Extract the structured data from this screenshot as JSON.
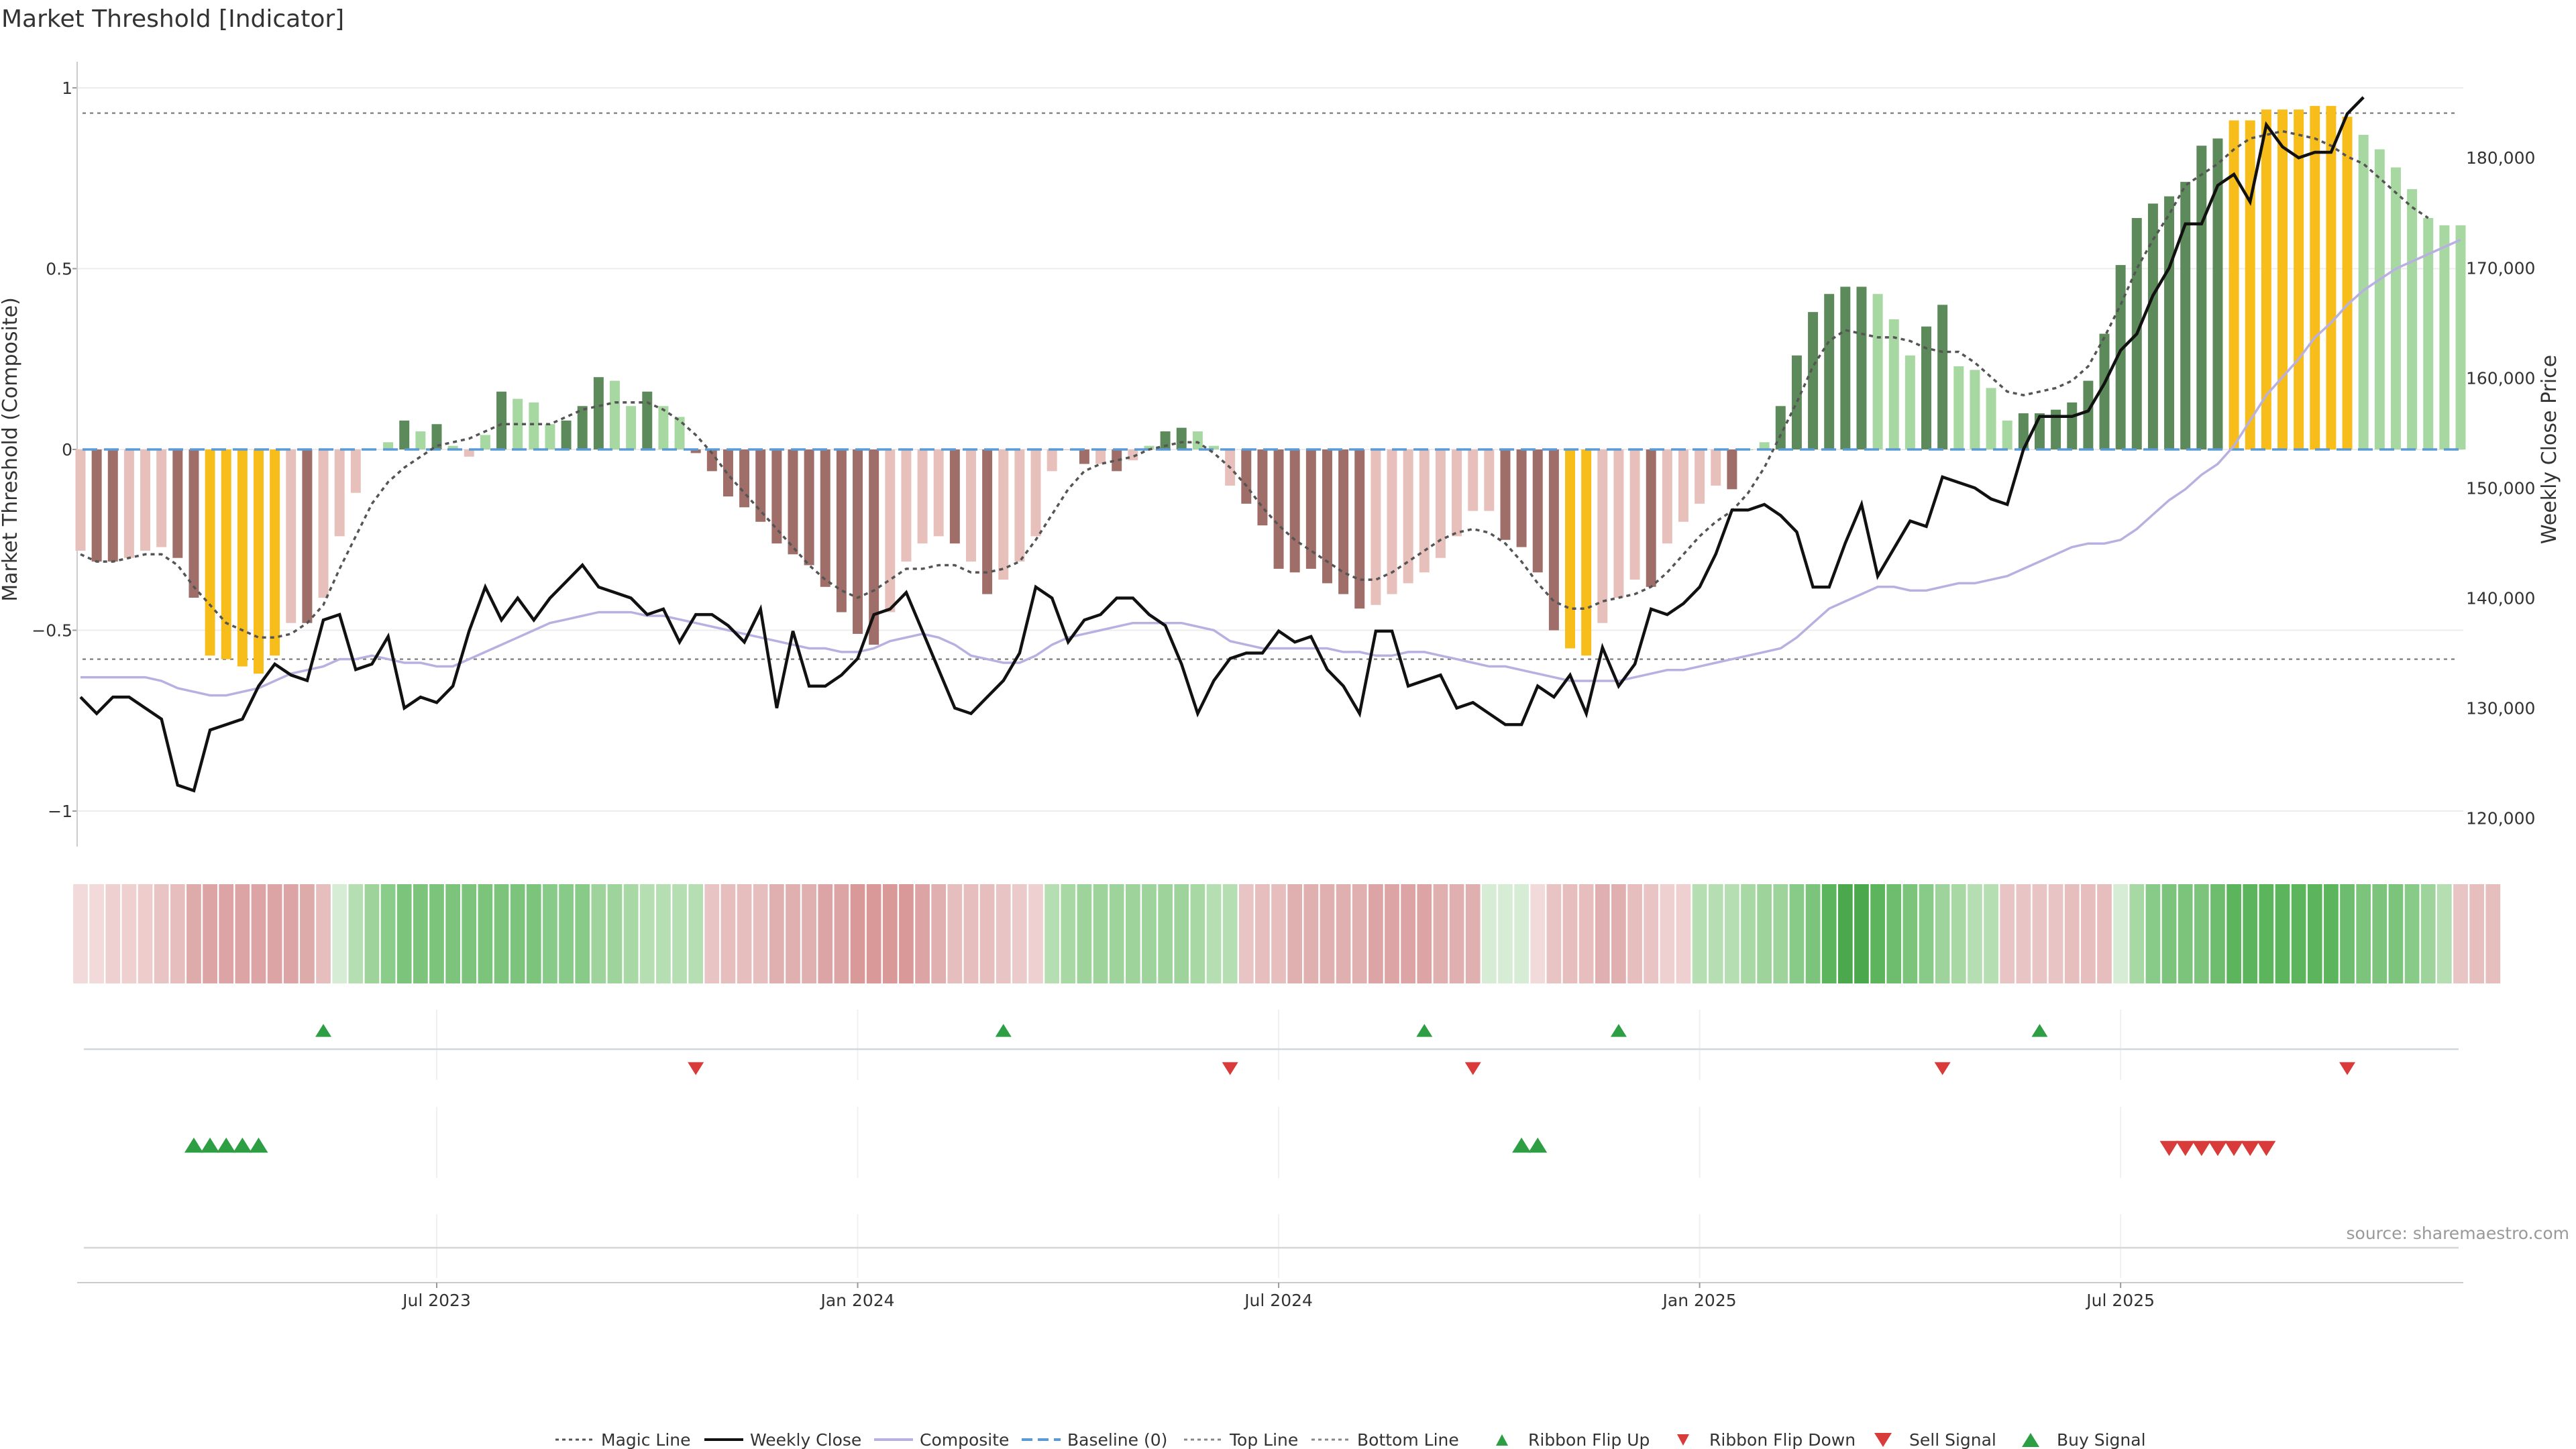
{
  "chart_data": {
    "type": "bar",
    "title": "Market Threshold [Indicator]",
    "ylabel_left": "Market Threshold (Composite)",
    "ylabel_right": "Weekly Close Price",
    "ylim_left": [
      -1.05,
      1.05
    ],
    "ylim_right": [
      119000,
      188000
    ],
    "left_ticks": [
      "1",
      "0.5",
      "0",
      "−0.5",
      "−1"
    ],
    "left_tick_values": [
      1,
      0.5,
      0,
      -0.5,
      -1
    ],
    "right_ticks": [
      "180,000",
      "170,000",
      "160,000",
      "150,000",
      "140,000",
      "130,000",
      "120,000"
    ],
    "right_tick_values": [
      180000,
      170000,
      160000,
      150000,
      140000,
      130000,
      120000
    ],
    "x_ticks": [
      "Jul 2023",
      "Jan 2024",
      "Jul 2024",
      "Jan 2025",
      "Jul 2025"
    ],
    "x_tick_weeks": [
      22,
      48,
      74,
      100,
      126
    ],
    "top_line": 0.93,
    "bottom_line": -0.58,
    "bar_values": [
      -0.28,
      -0.31,
      -0.31,
      -0.3,
      -0.28,
      -0.27,
      -0.3,
      -0.41,
      -0.57,
      -0.58,
      -0.6,
      -0.62,
      -0.57,
      -0.48,
      -0.48,
      -0.41,
      -0.24,
      -0.12,
      0,
      0.02,
      0.08,
      0.05,
      0.07,
      0.01,
      -0.02,
      0.04,
      0.16,
      0.14,
      0.13,
      0.07,
      0.08,
      0.12,
      0.2,
      0.19,
      0.12,
      0.16,
      0.12,
      0.09,
      -0.01,
      -0.06,
      -0.13,
      -0.16,
      -0.2,
      -0.26,
      -0.29,
      -0.32,
      -0.38,
      -0.45,
      -0.51,
      -0.54,
      -0.45,
      -0.31,
      -0.26,
      -0.24,
      -0.26,
      -0.31,
      -0.4,
      -0.36,
      -0.31,
      -0.24,
      -0.06,
      0,
      -0.04,
      -0.04,
      -0.06,
      -0.03,
      0.01,
      0.05,
      0.06,
      0.05,
      0.01,
      -0.1,
      -0.15,
      -0.21,
      -0.33,
      -0.34,
      -0.33,
      -0.37,
      -0.4,
      -0.44,
      -0.43,
      -0.4,
      -0.37,
      -0.34,
      -0.3,
      -0.24,
      -0.17,
      -0.17,
      -0.25,
      -0.27,
      -0.34,
      -0.5,
      -0.55,
      -0.57,
      -0.48,
      -0.41,
      -0.36,
      -0.38,
      -0.26,
      -0.2,
      -0.15,
      -0.1,
      -0.11,
      0,
      0.02,
      0.12,
      0.26,
      0.38,
      0.43,
      0.45,
      0.45,
      0.43,
      0.36,
      0.26,
      0.34,
      0.4,
      0.23,
      0.22,
      0.17,
      0.08,
      0.1,
      0.1,
      0.11,
      0.13,
      0.19,
      0.32,
      0.51,
      0.64,
      0.68,
      0.7,
      0.74,
      0.84,
      0.86,
      0.91,
      0.91,
      0.94,
      0.94,
      0.94,
      0.95,
      0.95,
      0.92,
      0.87,
      0.83,
      0.78,
      0.72,
      0.64,
      0.62,
      0.62
    ],
    "bar_colors": [
      "#e8c0bb",
      "#a06e68",
      "#a06e68",
      "#e8c0bb",
      "#e8c0bb",
      "#e8c0bb",
      "#a06e68",
      "#a06e68",
      "#f7bd1a",
      "#f7bd1a",
      "#f7bd1a",
      "#f7bd1a",
      "#f7bd1a",
      "#e8c0bb",
      "#a06e68",
      "#e8c0bb",
      "#e8c0bb",
      "#e8c0bb",
      "#e8c0bb",
      "#a8d8a2",
      "#5d8a5a",
      "#a8d8a2",
      "#5d8a5a",
      "#a8d8a2",
      "#e8c0bb",
      "#a8d8a2",
      "#5d8a5a",
      "#a8d8a2",
      "#a8d8a2",
      "#a8d8a2",
      "#5d8a5a",
      "#5d8a5a",
      "#5d8a5a",
      "#a8d8a2",
      "#a8d8a2",
      "#5d8a5a",
      "#a8d8a2",
      "#a8d8a2",
      "#a06e68",
      "#a06e68",
      "#a06e68",
      "#a06e68",
      "#a06e68",
      "#a06e68",
      "#a06e68",
      "#a06e68",
      "#a06e68",
      "#a06e68",
      "#a06e68",
      "#a06e68",
      "#e8c0bb",
      "#e8c0bb",
      "#e8c0bb",
      "#e8c0bb",
      "#a06e68",
      "#e8c0bb",
      "#a06e68",
      "#e8c0bb",
      "#e8c0bb",
      "#e8c0bb",
      "#e8c0bb",
      "#e8c0bb",
      "#a06e68",
      "#e8c0bb",
      "#a06e68",
      "#e8c0bb",
      "#a8d8a2",
      "#5d8a5a",
      "#5d8a5a",
      "#a8d8a2",
      "#a8d8a2",
      "#e8c0bb",
      "#a06e68",
      "#a06e68",
      "#a06e68",
      "#a06e68",
      "#a06e68",
      "#a06e68",
      "#a06e68",
      "#a06e68",
      "#e8c0bb",
      "#e8c0bb",
      "#e8c0bb",
      "#e8c0bb",
      "#e8c0bb",
      "#e8c0bb",
      "#e8c0bb",
      "#e8c0bb",
      "#a06e68",
      "#a06e68",
      "#a06e68",
      "#a06e68",
      "#f7bd1a",
      "#f7bd1a",
      "#e8c0bb",
      "#e8c0bb",
      "#e8c0bb",
      "#a06e68",
      "#e8c0bb",
      "#e8c0bb",
      "#e8c0bb",
      "#e8c0bb",
      "#a06e68",
      "#a8d8a2",
      "#a8d8a2",
      "#5d8a5a",
      "#5d8a5a",
      "#5d8a5a",
      "#5d8a5a",
      "#5d8a5a",
      "#5d8a5a",
      "#a8d8a2",
      "#a8d8a2",
      "#a8d8a2",
      "#5d8a5a",
      "#5d8a5a",
      "#a8d8a2",
      "#a8d8a2",
      "#a8d8a2",
      "#a8d8a2",
      "#5d8a5a",
      "#5d8a5a",
      "#5d8a5a",
      "#5d8a5a",
      "#5d8a5a",
      "#5d8a5a",
      "#5d8a5a",
      "#5d8a5a",
      "#5d8a5a",
      "#5d8a5a",
      "#5d8a5a",
      "#5d8a5a",
      "#5d8a5a",
      "#f7bd1a",
      "#f7bd1a",
      "#f7bd1a",
      "#f7bd1a",
      "#f7bd1a",
      "#f7bd1a",
      "#f7bd1a",
      "#f7bd1a",
      "#a8d8a2",
      "#a8d8a2",
      "#a8d8a2",
      "#a8d8a2",
      "#a8d8a2",
      "#a8d8a2",
      "#a8d8a2",
      "#a8d8a2"
    ],
    "weekly_close": [
      131000,
      129500,
      131000,
      131000,
      130000,
      129000,
      123000,
      122500,
      128000,
      128500,
      129000,
      132000,
      134000,
      133000,
      132500,
      138000,
      138500,
      133500,
      134000,
      136500,
      130000,
      131000,
      130500,
      132000,
      137000,
      141000,
      138000,
      140000,
      138000,
      140000,
      141500,
      143000,
      141000,
      140500,
      140000,
      138500,
      139000,
      136000,
      138500,
      138500,
      137500,
      136000,
      139000,
      130000,
      137000,
      132000,
      132000,
      133000,
      134500,
      138500,
      139000,
      140500,
      137000,
      133500,
      130000,
      129500,
      131000,
      132500,
      135000,
      141000,
      140000,
      136000,
      138000,
      138500,
      140000,
      140000,
      138500,
      137500,
      134000,
      129500,
      132500,
      134500,
      135000,
      135000,
      137000,
      136000,
      136500,
      133500,
      132000,
      129500,
      137000,
      137000,
      132000,
      132500,
      133000,
      130000,
      130500,
      129500,
      128500,
      128500,
      132000,
      131000,
      133000,
      129500,
      135500,
      132000,
      134000,
      139000,
      138500,
      139500,
      141000,
      144000,
      148000,
      148000,
      148500,
      147500,
      146000,
      141000,
      141000,
      145000,
      148500,
      142000,
      144500,
      147000,
      146500,
      151000,
      150500,
      150000,
      149000,
      148500,
      153500,
      156500,
      156500,
      156500,
      157000,
      159500,
      162500,
      164000,
      167500,
      170000,
      174000,
      174000,
      177500,
      178500,
      176000,
      183000,
      181000,
      180000,
      180500,
      180500,
      184000,
      185500
    ],
    "composite": [
      -0.63,
      -0.63,
      -0.63,
      -0.63,
      -0.63,
      -0.64,
      -0.66,
      -0.67,
      -0.68,
      -0.68,
      -0.67,
      -0.66,
      -0.64,
      -0.62,
      -0.61,
      -0.6,
      -0.58,
      -0.58,
      -0.57,
      -0.58,
      -0.59,
      -0.59,
      -0.6,
      -0.6,
      -0.58,
      -0.56,
      -0.54,
      -0.52,
      -0.5,
      -0.48,
      -0.47,
      -0.46,
      -0.45,
      -0.45,
      -0.45,
      -0.46,
      -0.46,
      -0.47,
      -0.48,
      -0.49,
      -0.5,
      -0.51,
      -0.52,
      -0.53,
      -0.54,
      -0.55,
      -0.55,
      -0.56,
      -0.56,
      -0.55,
      -0.53,
      -0.52,
      -0.51,
      -0.52,
      -0.54,
      -0.57,
      -0.58,
      -0.59,
      -0.59,
      -0.57,
      -0.54,
      -0.52,
      -0.51,
      -0.5,
      -0.49,
      -0.48,
      -0.48,
      -0.48,
      -0.48,
      -0.49,
      -0.5,
      -0.53,
      -0.54,
      -0.55,
      -0.55,
      -0.55,
      -0.55,
      -0.55,
      -0.56,
      -0.56,
      -0.57,
      -0.57,
      -0.56,
      -0.56,
      -0.57,
      -0.58,
      -0.59,
      -0.6,
      -0.6,
      -0.61,
      -0.62,
      -0.63,
      -0.64,
      -0.64,
      -0.64,
      -0.64,
      -0.63,
      -0.62,
      -0.61,
      -0.61,
      -0.6,
      -0.59,
      -0.58,
      -0.57,
      -0.56,
      -0.55,
      -0.52,
      -0.48,
      -0.44,
      -0.42,
      -0.4,
      -0.38,
      -0.38,
      -0.39,
      -0.39,
      -0.38,
      -0.37,
      -0.37,
      -0.36,
      -0.35,
      -0.33,
      -0.31,
      -0.29,
      -0.27,
      -0.26,
      -0.26,
      -0.25,
      -0.22,
      -0.18,
      -0.14,
      -0.11,
      -0.07,
      -0.04,
      0.01,
      0.08,
      0.15,
      0.2,
      0.25,
      0.31,
      0.35,
      0.4,
      0.44,
      0.47,
      0.5,
      0.52,
      0.54,
      0.56,
      0.58
    ],
    "magic_line": [
      -0.29,
      -0.31,
      -0.31,
      -0.3,
      -0.29,
      -0.29,
      -0.32,
      -0.38,
      -0.43,
      -0.48,
      -0.5,
      -0.52,
      -0.52,
      -0.51,
      -0.48,
      -0.43,
      -0.33,
      -0.24,
      -0.15,
      -0.09,
      -0.05,
      -0.02,
      0.01,
      0.02,
      0.03,
      0.05,
      0.07,
      0.07,
      0.07,
      0.07,
      0.09,
      0.11,
      0.12,
      0.13,
      0.13,
      0.13,
      0.11,
      0.08,
      0.04,
      -0.01,
      -0.07,
      -0.12,
      -0.17,
      -0.22,
      -0.27,
      -0.32,
      -0.36,
      -0.39,
      -0.41,
      -0.39,
      -0.36,
      -0.33,
      -0.33,
      -0.32,
      -0.32,
      -0.34,
      -0.34,
      -0.33,
      -0.31,
      -0.25,
      -0.18,
      -0.11,
      -0.06,
      -0.04,
      -0.03,
      -0.02,
      0,
      0.01,
      0.02,
      0.02,
      -0.01,
      -0.05,
      -0.1,
      -0.16,
      -0.21,
      -0.25,
      -0.28,
      -0.31,
      -0.34,
      -0.36,
      -0.36,
      -0.34,
      -0.31,
      -0.28,
      -0.25,
      -0.23,
      -0.22,
      -0.23,
      -0.26,
      -0.31,
      -0.37,
      -0.42,
      -0.44,
      -0.44,
      -0.42,
      -0.41,
      -0.4,
      -0.38,
      -0.34,
      -0.29,
      -0.24,
      -0.2,
      -0.17,
      -0.12,
      -0.05,
      0.04,
      0.13,
      0.23,
      0.3,
      0.33,
      0.32,
      0.31,
      0.31,
      0.3,
      0.28,
      0.27,
      0.27,
      0.24,
      0.2,
      0.16,
      0.15,
      0.16,
      0.17,
      0.19,
      0.23,
      0.31,
      0.4,
      0.5,
      0.58,
      0.65,
      0.73,
      0.76,
      0.79,
      0.83,
      0.86,
      0.87,
      0.88,
      0.87,
      0.86,
      0.84,
      0.81,
      0.79,
      0.75,
      0.71,
      0.67,
      0.64
    ],
    "ribbon_colors": [
      "#f2dada",
      "#f2dada",
      "#eed0d0",
      "#eed0d0",
      "#eecccc",
      "#e8c4c4",
      "#e6bebe",
      "#deabab",
      "#dca4a4",
      "#dca4a4",
      "#dca4a4",
      "#dca4a4",
      "#dca4a4",
      "#dca4a4",
      "#deabab",
      "#e6bebe",
      "#d7ecd4",
      "#b5dfb2",
      "#9ed49c",
      "#8acc8a",
      "#7cc47c",
      "#7cc47c",
      "#7cc47c",
      "#7cc47c",
      "#7cc47c",
      "#7cc47c",
      "#7cc47c",
      "#7cc47c",
      "#7cc47c",
      "#88ca88",
      "#88ca88",
      "#88ca88",
      "#9ed49c",
      "#9ed49c",
      "#a8d8a4",
      "#b5dfb2",
      "#b5dfb2",
      "#b5dfb2",
      "#b5dfb2",
      "#e8c4c4",
      "#e6bebe",
      "#e6bebe",
      "#e6bebe",
      "#e0b0b0",
      "#e0b0b0",
      "#e0b0b0",
      "#dca4a4",
      "#dca4a4",
      "#d99999",
      "#d99999",
      "#d99999",
      "#d99999",
      "#dca4a4",
      "#e0b0b0",
      "#e6bebe",
      "#e6bebe",
      "#e6bebe",
      "#e8c4c4",
      "#eacaca",
      "#eed0d0",
      "#b5dfb2",
      "#a8d8a4",
      "#9ed49c",
      "#9ed49c",
      "#9ed49c",
      "#9ed49c",
      "#9ed49c",
      "#9ed49c",
      "#9ed49c",
      "#a8d8a4",
      "#b5dfb2",
      "#b5dfb2",
      "#e8c4c4",
      "#e6bebe",
      "#e6bebe",
      "#e0b0b0",
      "#e0b0b0",
      "#e0b0b0",
      "#e0b0b0",
      "#e0b0b0",
      "#dca4a4",
      "#dca4a4",
      "#dca4a4",
      "#dca4a4",
      "#e0b0b0",
      "#e0b0b0",
      "#e0b0b0",
      "#d7ecd4",
      "#d7ecd4",
      "#d7ecd4",
      "#f2dada",
      "#e8c4c4",
      "#e6bebe",
      "#e6bebe",
      "#e0b0b0",
      "#e0b0b0",
      "#e6bebe",
      "#e8c4c4",
      "#eed0d0",
      "#eed0d0",
      "#b5dfb2",
      "#b5dfb2",
      "#b5dfb2",
      "#a8d8a4",
      "#9ed49c",
      "#9ed49c",
      "#88ca88",
      "#7cc47c",
      "#5cb45c",
      "#4ca84c",
      "#4ca84c",
      "#5cb45c",
      "#6ebd6e",
      "#7cc47c",
      "#88ca88",
      "#9ed49c",
      "#a8d8a4",
      "#b5dfb2",
      "#b5dfb2",
      "#e8c4c4",
      "#e8c4c4",
      "#e8c4c4",
      "#e8c4c4",
      "#e6bebe",
      "#e6bebe",
      "#e6bebe",
      "#d7ecd4",
      "#a8d8a4",
      "#88ca88",
      "#7cc47c",
      "#7cc47c",
      "#7cc47c",
      "#6ebd6e",
      "#5cb45c",
      "#5cb45c",
      "#5cb45c",
      "#5cb45c",
      "#5cb45c",
      "#5cb45c",
      "#5cb45c",
      "#6ebd6e",
      "#7cc47c",
      "#7cc47c",
      "#7cc47c",
      "#88ca88",
      "#9ed49c",
      "#b5dfb2",
      "#e8c4c4",
      "#e6bebe",
      "#e6bebe"
    ],
    "ribbon_flip_up_weeks": [
      15,
      57,
      83,
      95,
      121
    ],
    "ribbon_flip_down_weeks": [
      38,
      71,
      86,
      115,
      140
    ],
    "buy_signal_weeks": [
      7,
      8,
      9,
      10,
      11,
      89,
      90
    ],
    "sell_signal_weeks": [
      129,
      130,
      131,
      132,
      133,
      134,
      135
    ],
    "legend": [
      "Magic Line",
      "Weekly Close",
      "Composite",
      "Baseline (0)",
      "Top Line",
      "Bottom Line",
      "Ribbon Flip Up",
      "Ribbon Flip Down",
      "Sell Signal",
      "Buy Signal"
    ],
    "source_text": "source: sharemaestro.com",
    "colors": {
      "bull_dark": "#5d8a5a",
      "bull_light": "#a8d8a2",
      "bear_dark": "#a06e68",
      "bear_light": "#e8c0bb",
      "extreme": "#f7bd1a",
      "signal_green": "#2e9e44",
      "signal_red": "#d93a3a",
      "composite": "#b8b0e0",
      "baseline": "#5b9bd5",
      "close": "#111111"
    }
  }
}
